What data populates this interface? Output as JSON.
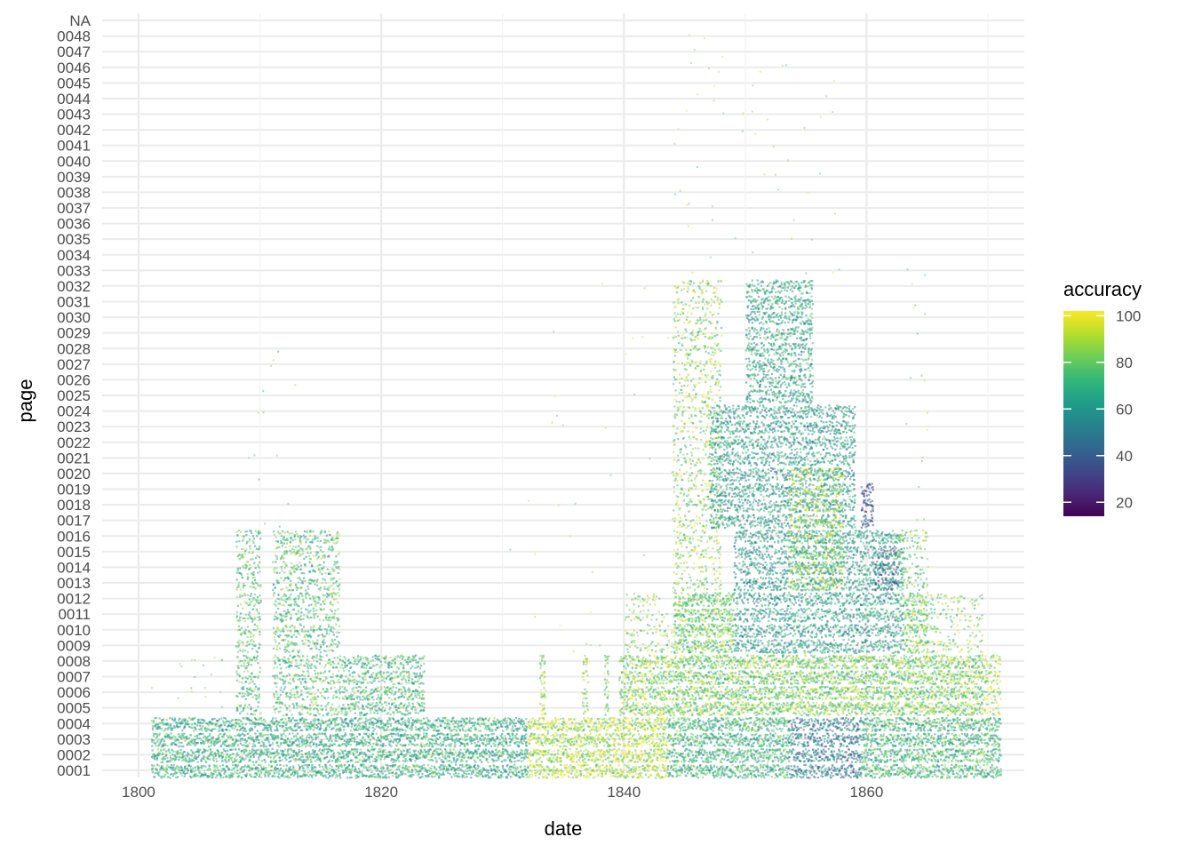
{
  "chart_data": {
    "type": "scatter",
    "xlabel": "date",
    "ylabel": "page",
    "xlim": [
      1797,
      1873
    ],
    "x_ticks": [
      1800,
      1820,
      1840,
      1860
    ],
    "y_categories": [
      "0001",
      "0002",
      "0003",
      "0004",
      "0005",
      "0006",
      "0007",
      "0008",
      "0009",
      "0010",
      "0011",
      "0012",
      "0013",
      "0014",
      "0015",
      "0016",
      "0017",
      "0018",
      "0019",
      "0020",
      "0021",
      "0022",
      "0023",
      "0024",
      "0025",
      "0026",
      "0027",
      "0028",
      "0029",
      "0030",
      "0031",
      "0032",
      "0033",
      "0034",
      "0035",
      "0036",
      "0037",
      "0038",
      "0039",
      "0040",
      "0041",
      "0042",
      "0043",
      "0044",
      "0045",
      "0046",
      "0047",
      "0048",
      "NA"
    ],
    "grid": true,
    "color_variable": "accuracy",
    "colormap": "viridis",
    "colorbar": {
      "title": "accuracy",
      "range": [
        14,
        102
      ],
      "ticks": [
        20,
        40,
        60,
        80,
        100
      ],
      "position": "right"
    },
    "viridis_stops": [
      "#440154",
      "#482878",
      "#3e4989",
      "#31688e",
      "#26828e",
      "#1f9e89",
      "#35b779",
      "#6ece58",
      "#b5de2b",
      "#fde725"
    ],
    "regions": [
      {
        "x": [
          1801.0,
          1832.0
        ],
        "pages": [
          1,
          4
        ],
        "accuracy": 68,
        "density": 1.0
      },
      {
        "x": [
          1832.0,
          1843.5
        ],
        "pages": [
          1,
          4
        ],
        "accuracy": 90,
        "density": 1.0
      },
      {
        "x": [
          1843.5,
          1853.5
        ],
        "pages": [
          1,
          4
        ],
        "accuracy": 70,
        "density": 1.0
      },
      {
        "x": [
          1853.5,
          1859.5
        ],
        "pages": [
          1,
          4
        ],
        "accuracy": 50,
        "density": 0.9
      },
      {
        "x": [
          1859.5,
          1871.0
        ],
        "pages": [
          1,
          4
        ],
        "accuracy": 72,
        "density": 1.0
      },
      {
        "x": [
          1808.0,
          1810.0
        ],
        "pages": [
          5,
          16
        ],
        "accuracy": 75,
        "density": 0.55
      },
      {
        "x": [
          1811.0,
          1816.5
        ],
        "pages": [
          5,
          16
        ],
        "accuracy": 75,
        "density": 0.55
      },
      {
        "x": [
          1816.5,
          1823.5
        ],
        "pages": [
          5,
          8
        ],
        "accuracy": 72,
        "density": 0.75
      },
      {
        "x": [
          1833.0,
          1833.5
        ],
        "pages": [
          5,
          8
        ],
        "accuracy": 88,
        "density": 0.8
      },
      {
        "x": [
          1836.5,
          1837.0
        ],
        "pages": [
          5,
          8
        ],
        "accuracy": 88,
        "density": 0.8
      },
      {
        "x": [
          1838.3,
          1838.7
        ],
        "pages": [
          5,
          8
        ],
        "accuracy": 85,
        "density": 0.8
      },
      {
        "x": [
          1839.5,
          1840.0
        ],
        "pages": [
          5,
          8
        ],
        "accuracy": 82,
        "density": 0.8
      },
      {
        "x": [
          1840.0,
          1844.0
        ],
        "pages": [
          5,
          8
        ],
        "accuracy": 85,
        "density": 0.9
      },
      {
        "x": [
          1844.0,
          1869.5
        ],
        "pages": [
          5,
          8
        ],
        "accuracy": 82,
        "density": 1.0
      },
      {
        "x": [
          1840.0,
          1844.0
        ],
        "pages": [
          9,
          12
        ],
        "accuracy": 85,
        "density": 0.25
      },
      {
        "x": [
          1844.0,
          1849.0
        ],
        "pages": [
          9,
          12
        ],
        "accuracy": 80,
        "density": 1.0
      },
      {
        "x": [
          1849.0,
          1863.0
        ],
        "pages": [
          9,
          16
        ],
        "accuracy": 62,
        "density": 0.75
      },
      {
        "x": [
          1863.0,
          1865.0
        ],
        "pages": [
          9,
          12
        ],
        "accuracy": 82,
        "density": 0.95
      },
      {
        "x": [
          1865.0,
          1869.5
        ],
        "pages": [
          9,
          12
        ],
        "accuracy": 85,
        "density": 0.25
      },
      {
        "x": [
          1844.0,
          1848.0
        ],
        "pages": [
          13,
          32
        ],
        "accuracy": 85,
        "density": 0.35
      },
      {
        "x": [
          1847.0,
          1859.0
        ],
        "pages": [
          17,
          24
        ],
        "accuracy": 62,
        "density": 0.75
      },
      {
        "x": [
          1850.0,
          1855.5
        ],
        "pages": [
          25,
          32
        ],
        "accuracy": 65,
        "density": 0.75
      },
      {
        "x": [
          1859.5,
          1860.5
        ],
        "pages": [
          17,
          19
        ],
        "accuracy": 35,
        "density": 0.85
      },
      {
        "x": [
          1853.5,
          1858.0
        ],
        "pages": [
          13,
          20
        ],
        "accuracy": 88,
        "density": 0.45
      },
      {
        "x": [
          1860.5,
          1862.5
        ],
        "pages": [
          13,
          15
        ],
        "accuracy": 40,
        "density": 0.55
      },
      {
        "x": [
          1862.5,
          1865.0
        ],
        "pages": [
          13,
          16
        ],
        "accuracy": 80,
        "density": 0.35
      },
      {
        "x": [
          1869.5,
          1871.0
        ],
        "pages": [
          5,
          8
        ],
        "accuracy": 90,
        "density": 0.6
      }
    ],
    "stragglers": [
      {
        "x": [
          1801.0,
          1807.0
        ],
        "pages": [
          5,
          8
        ],
        "accuracy": 80,
        "count": 18
      },
      {
        "x": [
          1809.0,
          1813.0
        ],
        "pages": [
          17,
          28
        ],
        "accuracy": 70,
        "count": 14
      },
      {
        "x": [
          1830.0,
          1844.0
        ],
        "pages": [
          5,
          32
        ],
        "accuracy": 88,
        "count": 40
      },
      {
        "x": [
          1844.0,
          1858.0
        ],
        "pages": [
          33,
          48
        ],
        "accuracy": 85,
        "count": 55
      },
      {
        "x": [
          1863.0,
          1865.0
        ],
        "pages": [
          17,
          33
        ],
        "accuracy": 80,
        "count": 18
      }
    ]
  }
}
